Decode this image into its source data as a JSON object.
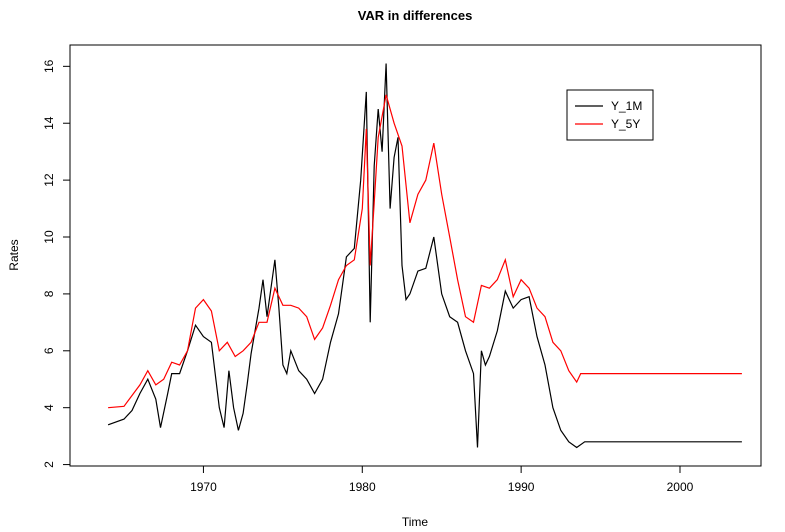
{
  "chart_data": {
    "type": "line",
    "title": "VAR in differences",
    "xlabel": "Time",
    "ylabel": "Rates",
    "xlim": [
      1961.6,
      2005.1
    ],
    "ylim": [
      1.95,
      16.75
    ],
    "xticks": [
      1970,
      1980,
      1990,
      2000
    ],
    "yticks": [
      2,
      4,
      6,
      8,
      10,
      12,
      14,
      16
    ],
    "legend": "top-right",
    "series": [
      {
        "name": "Y_1M",
        "color": "#000000",
        "x": [
          1964,
          1965,
          1965.5,
          1966,
          1966.5,
          1967,
          1967.3,
          1967.75,
          1968,
          1968.5,
          1969,
          1969.5,
          1970,
          1970.5,
          1971,
          1971.3,
          1971.6,
          1971.9,
          1972.2,
          1972.5,
          1972.75,
          1973,
          1973.5,
          1973.75,
          1974,
          1974.5,
          1974.75,
          1975,
          1975.25,
          1975.5,
          1976,
          1976.5,
          1977,
          1977.5,
          1978,
          1978.5,
          1979,
          1979.5,
          1979.9,
          1980.25,
          1980.5,
          1980.75,
          1981,
          1981.25,
          1981.5,
          1981.75,
          1982,
          1982.25,
          1982.5,
          1982.75,
          1983,
          1983.5,
          1984,
          1984.5,
          1985,
          1985.5,
          1986,
          1986.5,
          1987,
          1987.25,
          1987.5,
          1987.75,
          1988,
          1988.5,
          1989,
          1989.5,
          1990,
          1990.5,
          1991,
          1991.5,
          1992,
          1992.5,
          1993,
          1993.5,
          1994,
          2003.9
        ],
        "values": [
          3.4,
          3.6,
          3.9,
          4.5,
          5.0,
          4.3,
          3.3,
          4.5,
          5.2,
          5.2,
          6.0,
          6.9,
          6.5,
          6.3,
          4.0,
          3.3,
          5.3,
          4.0,
          3.2,
          3.8,
          4.8,
          5.9,
          7.5,
          8.5,
          7.2,
          9.2,
          7.5,
          5.5,
          5.2,
          6.0,
          5.3,
          5.0,
          4.5,
          5.0,
          6.3,
          7.3,
          9.3,
          9.6,
          12.0,
          15.1,
          7.0,
          12.5,
          14.5,
          13.0,
          16.1,
          11.0,
          12.8,
          13.5,
          9.0,
          7.8,
          8.0,
          8.8,
          8.9,
          10.0,
          8.0,
          7.2,
          7.0,
          6.0,
          5.2,
          2.6,
          6.0,
          5.5,
          5.8,
          6.7,
          8.1,
          7.5,
          7.8,
          7.9,
          6.5,
          5.5,
          4.0,
          3.2,
          2.8,
          2.6,
          2.8,
          2.8
        ]
      },
      {
        "name": "Y_5Y",
        "color": "#ff0000",
        "x": [
          1964,
          1965,
          1966,
          1966.5,
          1967,
          1967.5,
          1968,
          1968.5,
          1969,
          1969.5,
          1970,
          1970.5,
          1971,
          1971.5,
          1972,
          1972.5,
          1973,
          1973.5,
          1974,
          1974.5,
          1975,
          1975.5,
          1976,
          1976.5,
          1977,
          1977.5,
          1978,
          1978.5,
          1979,
          1979.5,
          1980,
          1980.25,
          1980.5,
          1980.75,
          1981,
          1981.5,
          1982,
          1982.5,
          1983,
          1983.5,
          1984,
          1984.5,
          1985,
          1985.5,
          1986,
          1986.5,
          1987,
          1987.5,
          1988,
          1988.5,
          1989,
          1989.5,
          1990,
          1990.5,
          1991,
          1991.5,
          1992,
          1992.5,
          1993,
          1993.5,
          1993.75,
          2003.9
        ],
        "values": [
          4.0,
          4.05,
          4.8,
          5.3,
          4.8,
          5.0,
          5.6,
          5.5,
          6.0,
          7.5,
          7.8,
          7.4,
          6.0,
          6.3,
          5.8,
          6.0,
          6.3,
          7.0,
          7.0,
          8.2,
          7.6,
          7.6,
          7.5,
          7.2,
          6.4,
          6.8,
          7.6,
          8.5,
          9.0,
          9.2,
          11.0,
          13.8,
          9.0,
          11.2,
          13.5,
          15.0,
          14.0,
          13.2,
          10.5,
          11.5,
          12.0,
          13.3,
          11.5,
          10.0,
          8.5,
          7.2,
          7.0,
          8.3,
          8.2,
          8.5,
          9.2,
          7.9,
          8.5,
          8.2,
          7.5,
          7.2,
          6.3,
          6.0,
          5.3,
          4.9,
          5.2,
          5.2
        ]
      }
    ]
  }
}
